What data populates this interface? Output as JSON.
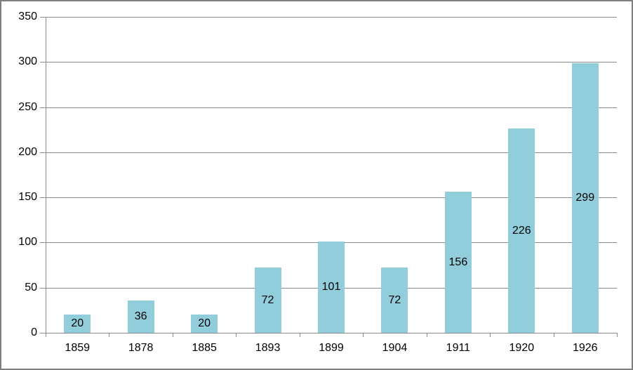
{
  "chart_data": {
    "type": "bar",
    "categories": [
      "1859",
      "1878",
      "1885",
      "1893",
      "1899",
      "1904",
      "1911",
      "1920",
      "1926"
    ],
    "values": [
      20,
      36,
      20,
      72,
      101,
      72,
      156,
      226,
      299
    ],
    "title": "",
    "xlabel": "",
    "ylabel": "",
    "ylim": [
      0,
      350
    ],
    "yticks": [
      0,
      50,
      100,
      150,
      200,
      250,
      300,
      350
    ],
    "grid": true,
    "legend": "none",
    "data_label_position": "inside-center",
    "colors": {
      "bar": "#92CDDC",
      "gridline": "#898989",
      "axis": "#898989",
      "text": "#000000",
      "frame_border": "#7F7F7F",
      "background": "#FFFFFF"
    }
  }
}
